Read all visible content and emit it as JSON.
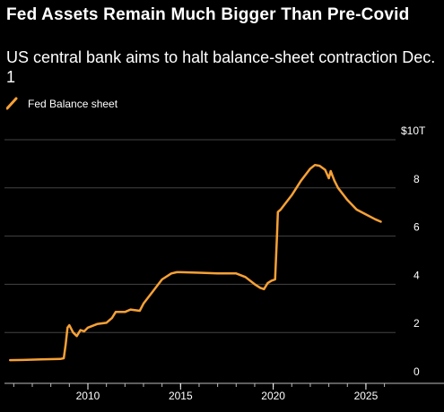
{
  "chart_data": {
    "type": "line",
    "title": "Fed Assets Remain Much Bigger Than Pre-Covid",
    "subtitle": "US central bank aims to halt balance-sheet contraction Dec. 1",
    "xlabel": "",
    "ylabel": "",
    "y_unit_label": "$10T",
    "ylim": [
      0,
      10
    ],
    "xlim": [
      2005.5,
      2026.6
    ],
    "grid": true,
    "legend_position": "top-left",
    "x_tick_labels": [
      "2010",
      "2015",
      "2020",
      "2025"
    ],
    "x_ticks": [
      2010,
      2015,
      2020,
      2025
    ],
    "y_tick_labels": [
      "0",
      "2",
      "4",
      "6",
      "8",
      "$10T"
    ],
    "y_ticks": [
      0,
      2,
      4,
      6,
      8,
      10
    ],
    "series": [
      {
        "name": "Fed Balance sheet",
        "color": "#f7a136",
        "x": [
          2005.8,
          2006.5,
          2007.5,
          2008.5,
          2008.7,
          2008.8,
          2008.9,
          2009.0,
          2009.2,
          2009.4,
          2009.6,
          2009.8,
          2010.0,
          2010.5,
          2011.0,
          2011.3,
          2011.5,
          2012.0,
          2012.3,
          2012.8,
          2013.0,
          2013.5,
          2014.0,
          2014.5,
          2014.8,
          2015.0,
          2016.0,
          2017.0,
          2018.0,
          2018.5,
          2019.0,
          2019.3,
          2019.5,
          2019.7,
          2019.9,
          2020.1,
          2020.2,
          2020.25,
          2020.4,
          2020.6,
          2021.0,
          2021.5,
          2022.0,
          2022.25,
          2022.5,
          2022.8,
          2023.0,
          2023.1,
          2023.2,
          2023.3,
          2023.5,
          2024.0,
          2024.5,
          2025.0,
          2025.5,
          2025.8
        ],
        "y": [
          0.85,
          0.86,
          0.88,
          0.9,
          0.93,
          1.5,
          2.2,
          2.3,
          2.0,
          1.85,
          2.1,
          2.05,
          2.2,
          2.35,
          2.4,
          2.6,
          2.85,
          2.85,
          2.95,
          2.9,
          3.2,
          3.7,
          4.2,
          4.45,
          4.5,
          4.5,
          4.48,
          4.45,
          4.45,
          4.3,
          4.0,
          3.85,
          3.8,
          4.05,
          4.15,
          4.2,
          6.0,
          7.0,
          7.1,
          7.3,
          7.7,
          8.3,
          8.8,
          8.95,
          8.92,
          8.75,
          8.4,
          8.7,
          8.5,
          8.3,
          8.0,
          7.5,
          7.1,
          6.9,
          6.7,
          6.6
        ]
      }
    ]
  }
}
